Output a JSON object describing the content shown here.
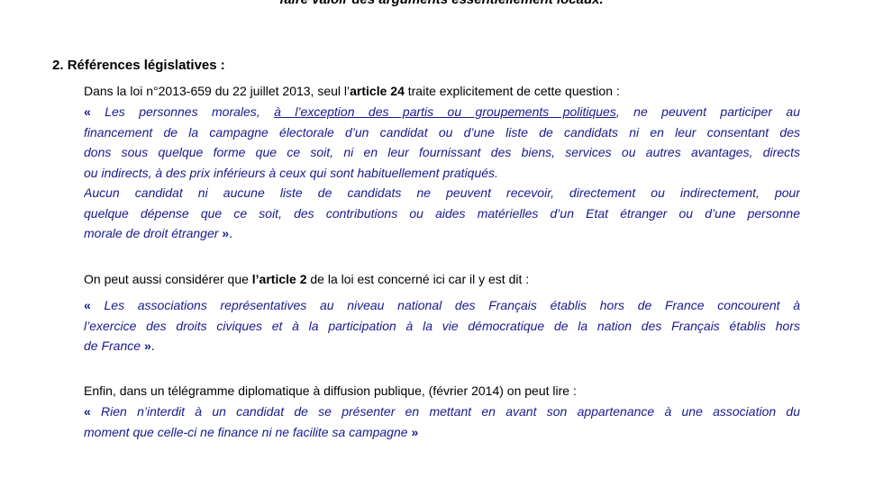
{
  "top_line": "faire valoir des arguments essentiellement locaux.",
  "heading": {
    "number": "2.",
    "title": "Références législatives :"
  },
  "paragraphs": [
    {
      "lines": [
        {
          "justify": false,
          "segs": [
            {
              "t": "Dans la loi n°2013-659 du 22 juillet 2013, seul l’",
              "s": ""
            },
            {
              "t": "article 24",
              "s": "b"
            },
            {
              "t": " traite explicitement de cette question :",
              "s": ""
            }
          ]
        },
        {
          "justify": true,
          "segs": [
            {
              "t": "« ",
              "s": "b q"
            },
            {
              "t": "Les personnes morales, ",
              "s": "i q"
            },
            {
              "t": "à l’exception des partis ou groupements politiques",
              "s": "i q u"
            },
            {
              "t": ", ne peuvent participer au",
              "s": "i q"
            }
          ]
        },
        {
          "justify": true,
          "segs": [
            {
              "t": "financement de la campagne électorale d’un candidat ou d’une liste de candidats ni en leur consentant des",
              "s": "i q"
            }
          ]
        },
        {
          "justify": true,
          "segs": [
            {
              "t": "dons sous quelque forme que ce soit, ni en leur fournissant des biens, services ou autres avantages, directs",
              "s": "i q"
            }
          ]
        },
        {
          "justify": false,
          "segs": [
            {
              "t": "ou indirects, à des prix inférieurs à ceux qui sont habituellement pratiqués.",
              "s": "i q"
            }
          ]
        },
        {
          "justify": true,
          "segs": [
            {
              "t": "Aucun candidat ni aucune liste de candidats ne peuvent recevoir, directement ou indirectement, pour",
              "s": "i q"
            }
          ]
        },
        {
          "justify": true,
          "segs": [
            {
              "t": "quelque dépense que ce soit, des contributions ou aides matérielles d’un Etat étranger ou d’une personne",
              "s": "i q"
            }
          ]
        },
        {
          "justify": false,
          "segs": [
            {
              "t": "morale de droit étranger ",
              "s": "i q"
            },
            {
              "t": "»",
              "s": "b q"
            },
            {
              "t": ".",
              "s": ""
            }
          ]
        }
      ]
    },
    {
      "lines": [
        {
          "justify": false,
          "segs": [
            {
              "t": "On peut aussi considérer que ",
              "s": ""
            },
            {
              "t": "l’article 2",
              "s": "b"
            },
            {
              "t": " de la loi est concerné ici car il y est dit :",
              "s": ""
            }
          ]
        },
        {
          "justify": true,
          "segs": [
            {
              "t": "« ",
              "s": "b q"
            },
            {
              "t": "Les associations représentatives au niveau national des Français établis hors de France concourent à",
              "s": "i q"
            }
          ]
        },
        {
          "justify": true,
          "segs": [
            {
              "t": "l’exercice des droits civiques et à la participation à la vie démocratique de la nation des Français établis hors",
              "s": "i q"
            }
          ]
        },
        {
          "justify": false,
          "segs": [
            {
              "t": "de France ",
              "s": "i q"
            },
            {
              "t": "»",
              "s": "b q"
            },
            {
              "t": ".",
              "s": ""
            }
          ]
        }
      ]
    },
    {
      "lines": [
        {
          "justify": false,
          "segs": [
            {
              "t": "Enfin, dans un télégramme diplomatique à diffusion publique, (février 2014) on peut lire :",
              "s": ""
            }
          ]
        },
        {
          "justify": true,
          "segs": [
            {
              "t": "« ",
              "s": "b q"
            },
            {
              "t": "Rien n’interdit à un candidat de se présenter en mettant en avant son appartenance à une association du",
              "s": "i q"
            }
          ]
        },
        {
          "justify": false,
          "segs": [
            {
              "t": "moment que celle-ci ne finance ni ne facilite sa campagne ",
              "s": "i q"
            },
            {
              "t": "»",
              "s": "b q"
            }
          ]
        }
      ]
    }
  ]
}
